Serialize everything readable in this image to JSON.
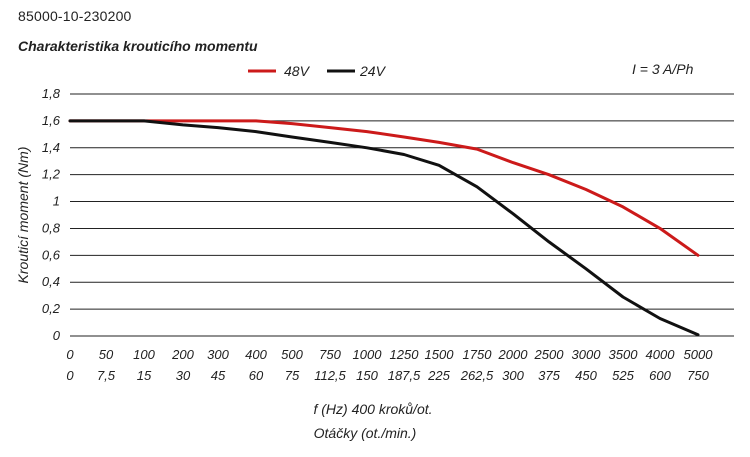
{
  "header": {
    "part_number": "85000-10-230200"
  },
  "chart_data": {
    "type": "line",
    "title": "Charakteristika krouticího momentu",
    "annotation": "I = 3 A/Ph",
    "ylabel": "Krouticí moment (Nm)",
    "xlabel": "f (Hz) 400 kroků/ot.",
    "xlabel2": "Otáčky (ot./min.)",
    "ylim": [
      0,
      1.8
    ],
    "yticks": [
      "0",
      "0,2",
      "0,4",
      "0,6",
      "0,8",
      "1",
      "1,2",
      "1,4",
      "1,6",
      "1,8"
    ],
    "categories": [
      "0",
      "50",
      "100",
      "200",
      "300",
      "400",
      "500",
      "750",
      "1000",
      "1250",
      "1500",
      "1750",
      "2000",
      "2500",
      "3000",
      "3500",
      "4000",
      "5000"
    ],
    "categories2": [
      "0",
      "7,5",
      "15",
      "30",
      "45",
      "60",
      "75",
      "112,5",
      "150",
      "187,5",
      "225",
      "262,5",
      "300",
      "375",
      "450",
      "525",
      "600",
      "750"
    ],
    "grid": "horizontal",
    "legend_position": "top",
    "series": [
      {
        "name": "48V",
        "color": "#cc1a1a",
        "values": [
          1.6,
          1.6,
          1.6,
          1.6,
          1.6,
          1.6,
          1.58,
          1.55,
          1.52,
          1.48,
          1.44,
          1.39,
          1.29,
          1.2,
          1.09,
          0.96,
          0.8,
          0.6
        ]
      },
      {
        "name": "24V",
        "color": "#111111",
        "values": [
          1.6,
          1.6,
          1.6,
          1.57,
          1.55,
          1.52,
          1.48,
          1.44,
          1.4,
          1.35,
          1.27,
          1.11,
          0.91,
          0.7,
          0.5,
          0.29,
          0.13,
          0.01
        ]
      }
    ]
  }
}
